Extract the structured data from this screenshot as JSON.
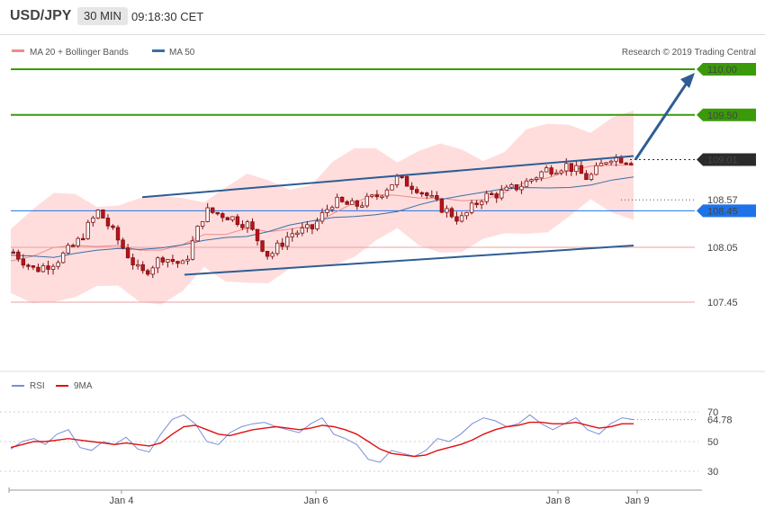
{
  "header": {
    "symbol": "USD/JPY",
    "timeframe": "30 MIN",
    "time": "09:18:30 CET"
  },
  "legend": {
    "ma_bb": "MA 20 + Bollinger Bands",
    "ma50": "MA 50"
  },
  "source": "Research © 2019 Trading Central",
  "rsi_legend": {
    "rsi": "RSI",
    "ma9": "9MA"
  },
  "colors": {
    "candle": "#c0101a",
    "bands": "#ffd2d2",
    "ma": "#f08a8a",
    "ma50": "#3a6ea5",
    "green": "#3a9a0a",
    "blue": "#1e73e8",
    "rsi": "#7a8ed8"
  },
  "chart_data": [
    {
      "type": "candlestick",
      "title": "USD/JPY",
      "xticks": [
        "Jan 4",
        "Jan 6",
        "Jan 8",
        "Jan 9"
      ],
      "ylim": [
        107.0,
        110.2
      ],
      "levels": [
        {
          "value": 110.0,
          "label": "110.00",
          "style": "resistance",
          "color": "#3a9a0a"
        },
        {
          "value": 109.5,
          "label": "109.50",
          "style": "resistance",
          "color": "#3a9a0a"
        },
        {
          "value": 109.01,
          "label": "109.01",
          "style": "last-price",
          "color": "#2b2b2b"
        },
        {
          "value": 108.57,
          "label": "108.57",
          "style": "pivot",
          "color": "#555555"
        },
        {
          "value": 108.45,
          "label": "108.45",
          "style": "pivot-line",
          "color": "#1e73e8"
        },
        {
          "value": 108.05,
          "label": "108.05",
          "style": "support",
          "color": "#c0101a"
        },
        {
          "value": 107.45,
          "label": "107.45",
          "style": "support",
          "color": "#c0101a"
        }
      ],
      "channel": {
        "upper": [
          [
            0.225,
            108.6
          ],
          [
            1.0,
            109.05
          ]
        ],
        "lower": [
          [
            0.225,
            107.75
          ],
          [
            1.0,
            108.07
          ]
        ]
      },
      "forecast_arrow": {
        "from": [
          1.0,
          109.01
        ],
        "to": [
          1.075,
          110.0
        ]
      },
      "series": [
        {
          "name": "MA 20 + Bollinger Bands",
          "close_path": [
            108.0,
            107.8,
            107.9,
            108.1,
            108.45,
            108.1,
            107.75,
            107.95,
            107.85,
            108.45,
            108.4,
            108.3,
            107.95,
            108.2,
            108.25,
            108.55,
            108.5,
            108.6,
            108.8,
            108.7,
            108.5,
            108.35,
            108.6,
            108.65,
            108.75,
            108.9,
            108.95,
            108.8,
            109.05,
            109.0
          ]
        },
        {
          "name": "MA 50"
        }
      ]
    },
    {
      "type": "line",
      "title": "RSI",
      "ylim": [
        20,
        80
      ],
      "yticks": [
        30,
        50,
        70
      ],
      "last_value": "64.78",
      "series": [
        {
          "name": "RSI",
          "values": [
            45,
            50,
            52,
            48,
            55,
            58,
            46,
            44,
            50,
            48,
            53,
            45,
            43,
            55,
            65,
            68,
            62,
            50,
            48,
            56,
            60,
            62,
            63,
            60,
            58,
            56,
            62,
            66,
            55,
            52,
            48,
            38,
            36,
            44,
            42,
            40,
            44,
            52,
            50,
            55,
            62,
            66,
            64,
            60,
            62,
            68,
            62,
            58,
            62,
            66,
            58,
            55,
            62,
            66,
            64.78
          ]
        },
        {
          "name": "9MA",
          "values": [
            46,
            48,
            50,
            50,
            51,
            52,
            51,
            50,
            49,
            48,
            49,
            48,
            47,
            49,
            55,
            60,
            61,
            58,
            55,
            54,
            56,
            58,
            59,
            60,
            59,
            58,
            59,
            61,
            60,
            58,
            55,
            50,
            45,
            42,
            41,
            40,
            41,
            44,
            46,
            48,
            51,
            55,
            58,
            60,
            61,
            63,
            63,
            62,
            62,
            63,
            61,
            59,
            60,
            62,
            62
          ]
        }
      ]
    }
  ]
}
